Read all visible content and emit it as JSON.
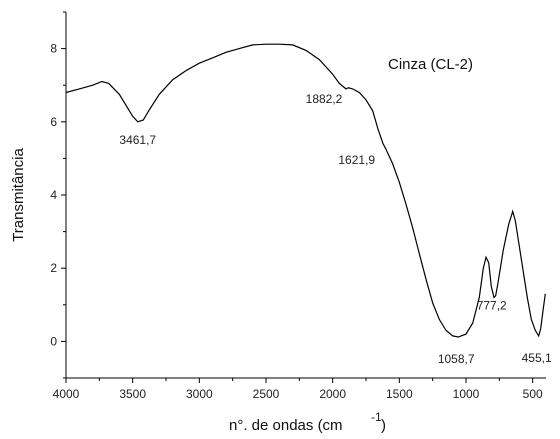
{
  "chart_data": {
    "type": "line",
    "title": "Cinza (CL-2)",
    "xlabel": "n°. de ondas (cm",
    "xlabel_sup": "-1",
    "ylabel": "Transmitância",
    "xlim": [
      4000,
      400
    ],
    "ylim": [
      -1,
      9
    ],
    "x_ticks": [
      4000,
      3500,
      3000,
      2500,
      2000,
      1500,
      1000,
      500
    ],
    "y_ticks": [
      0,
      2,
      4,
      6,
      8
    ],
    "grid": false,
    "series": [
      {
        "color": "#000000",
        "points": [
          [
            4000,
            6.8
          ],
          [
            3900,
            6.9
          ],
          [
            3800,
            7.0
          ],
          [
            3730,
            7.1
          ],
          [
            3680,
            7.05
          ],
          [
            3600,
            6.75
          ],
          [
            3550,
            6.45
          ],
          [
            3500,
            6.15
          ],
          [
            3461.7,
            6.0
          ],
          [
            3420,
            6.05
          ],
          [
            3380,
            6.3
          ],
          [
            3300,
            6.75
          ],
          [
            3200,
            7.15
          ],
          [
            3100,
            7.4
          ],
          [
            3000,
            7.6
          ],
          [
            2900,
            7.75
          ],
          [
            2800,
            7.9
          ],
          [
            2700,
            8.0
          ],
          [
            2600,
            8.1
          ],
          [
            2500,
            8.12
          ],
          [
            2400,
            8.12
          ],
          [
            2300,
            8.1
          ],
          [
            2200,
            7.95
          ],
          [
            2100,
            7.7
          ],
          [
            2000,
            7.3
          ],
          [
            1950,
            7.05
          ],
          [
            1900,
            6.9
          ],
          [
            1882.2,
            6.93
          ],
          [
            1850,
            6.9
          ],
          [
            1800,
            6.8
          ],
          [
            1750,
            6.6
          ],
          [
            1700,
            6.3
          ],
          [
            1660,
            5.8
          ],
          [
            1621.9,
            5.4
          ],
          [
            1600,
            5.25
          ],
          [
            1550,
            4.85
          ],
          [
            1500,
            4.35
          ],
          [
            1450,
            3.75
          ],
          [
            1400,
            3.1
          ],
          [
            1350,
            2.4
          ],
          [
            1300,
            1.7
          ],
          [
            1250,
            1.05
          ],
          [
            1200,
            0.6
          ],
          [
            1150,
            0.3
          ],
          [
            1100,
            0.15
          ],
          [
            1058.7,
            0.12
          ],
          [
            1000,
            0.2
          ],
          [
            950,
            0.5
          ],
          [
            900,
            1.2
          ],
          [
            870,
            2.0
          ],
          [
            850,
            2.3
          ],
          [
            830,
            2.15
          ],
          [
            810,
            1.5
          ],
          [
            790,
            1.2
          ],
          [
            777.2,
            1.25
          ],
          [
            760,
            1.6
          ],
          [
            720,
            2.5
          ],
          [
            680,
            3.2
          ],
          [
            650,
            3.55
          ],
          [
            630,
            3.3
          ],
          [
            600,
            2.6
          ],
          [
            570,
            1.9
          ],
          [
            540,
            1.2
          ],
          [
            510,
            0.6
          ],
          [
            480,
            0.3
          ],
          [
            455.1,
            0.15
          ],
          [
            440,
            0.35
          ],
          [
            420,
            0.9
          ],
          [
            405,
            1.3
          ]
        ]
      }
    ],
    "annotations": [
      {
        "text": "3461,7",
        "x": 3461.7,
        "y": 6.0
      },
      {
        "text": "1882,2",
        "x": 1882.2,
        "y": 6.93
      },
      {
        "text": "1621,9",
        "x": 1621.9,
        "y": 5.4
      },
      {
        "text": "1058,7",
        "x": 1058.7,
        "y": 0.12
      },
      {
        "text": "777,2",
        "x": 777.2,
        "y": 1.25
      },
      {
        "text": "455,1",
        "x": 455.1,
        "y": 0.15
      }
    ]
  }
}
